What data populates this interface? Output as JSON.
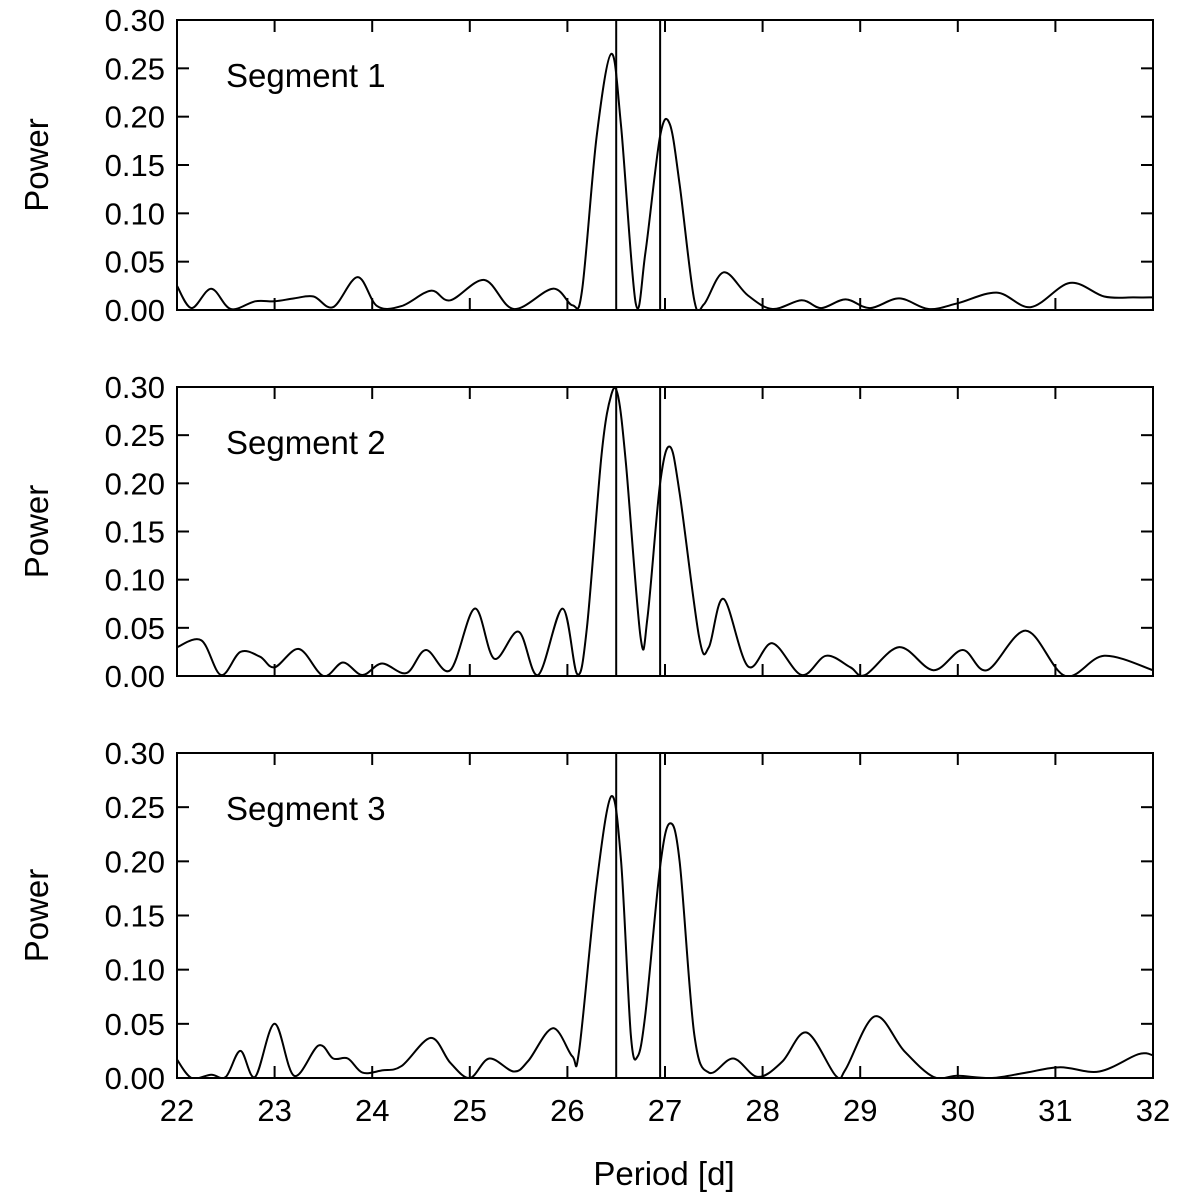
{
  "chart_data": {
    "type": "line",
    "xlabel": "Period [d]",
    "xlim": [
      22,
      32
    ],
    "x_ticks": [
      22,
      23,
      24,
      25,
      26,
      27,
      28,
      29,
      30,
      31,
      32
    ],
    "x_tick_labels": [
      "22",
      "23",
      "24",
      "25",
      "26",
      "27",
      "28",
      "29",
      "30",
      "31",
      "32"
    ],
    "ylim": [
      0,
      0.3
    ],
    "y_ticks": [
      0,
      0.05,
      0.1,
      0.15,
      0.2,
      0.25,
      0.3
    ],
    "y_tick_labels": [
      "0.00",
      "0.05",
      "0.10",
      "0.15",
      "0.20",
      "0.25",
      "0.30"
    ],
    "vertical_lines": [
      26.5,
      26.95
    ],
    "grid": false,
    "panels": [
      {
        "label": "Segment 1",
        "ylabel": "Power",
        "x": [
          22.0,
          22.15,
          22.35,
          22.55,
          22.8,
          23.0,
          23.2,
          23.4,
          23.6,
          23.85,
          24.05,
          24.3,
          24.6,
          24.8,
          25.15,
          25.45,
          25.85,
          26.05,
          26.15,
          26.3,
          26.45,
          26.55,
          26.7,
          26.8,
          26.95,
          27.05,
          27.15,
          27.3,
          27.4,
          27.6,
          27.85,
          28.1,
          28.4,
          28.6,
          28.85,
          29.1,
          29.4,
          29.7,
          30.0,
          30.4,
          30.75,
          31.15,
          31.5,
          31.8,
          32.0
        ],
        "y": [
          0.025,
          0.002,
          0.022,
          0.001,
          0.009,
          0.009,
          0.012,
          0.014,
          0.003,
          0.034,
          0.004,
          0.004,
          0.02,
          0.01,
          0.031,
          0.001,
          0.022,
          0.005,
          0.02,
          0.18,
          0.265,
          0.19,
          0.007,
          0.06,
          0.18,
          0.192,
          0.13,
          0.01,
          0.006,
          0.039,
          0.015,
          0.001,
          0.01,
          0.002,
          0.011,
          0.002,
          0.012,
          0.001,
          0.007,
          0.018,
          0.003,
          0.028,
          0.014,
          0.013,
          0.013
        ]
      },
      {
        "label": "Segment 2",
        "ylabel": "Power",
        "x": [
          22.0,
          22.25,
          22.45,
          22.65,
          22.85,
          23.0,
          23.25,
          23.5,
          23.7,
          23.9,
          24.1,
          24.35,
          24.55,
          24.8,
          25.05,
          25.25,
          25.5,
          25.7,
          25.95,
          26.1,
          26.2,
          26.35,
          26.45,
          26.52,
          26.6,
          26.75,
          26.82,
          26.95,
          27.05,
          27.15,
          27.35,
          27.45,
          27.6,
          27.85,
          28.1,
          28.4,
          28.65,
          28.9,
          29.05,
          29.4,
          29.75,
          30.05,
          30.3,
          30.7,
          31.1,
          31.5,
          32.0
        ],
        "y": [
          0.03,
          0.037,
          0.001,
          0.025,
          0.02,
          0.009,
          0.028,
          0.0,
          0.014,
          0.001,
          0.013,
          0.003,
          0.027,
          0.006,
          0.07,
          0.018,
          0.046,
          0.001,
          0.07,
          0.002,
          0.05,
          0.23,
          0.292,
          0.29,
          0.22,
          0.04,
          0.06,
          0.2,
          0.238,
          0.19,
          0.04,
          0.03,
          0.08,
          0.01,
          0.034,
          0.001,
          0.021,
          0.009,
          0.001,
          0.03,
          0.006,
          0.027,
          0.006,
          0.047,
          0.0,
          0.021,
          0.006
        ]
      },
      {
        "label": "Segment 3",
        "ylabel": "Power",
        "x": [
          22.0,
          22.15,
          22.35,
          22.5,
          22.65,
          22.8,
          23.0,
          23.2,
          23.45,
          23.6,
          23.75,
          23.9,
          24.1,
          24.3,
          24.6,
          24.8,
          25.0,
          25.2,
          25.45,
          25.6,
          25.85,
          26.05,
          26.12,
          26.3,
          26.45,
          26.55,
          26.65,
          26.72,
          26.8,
          26.95,
          27.05,
          27.15,
          27.3,
          27.45,
          27.7,
          27.95,
          28.2,
          28.45,
          28.75,
          28.85,
          29.15,
          29.45,
          29.75,
          30.0,
          30.35,
          30.7,
          31.05,
          31.45,
          31.85,
          32.0
        ],
        "y": [
          0.017,
          0.0,
          0.003,
          0.001,
          0.025,
          0.001,
          0.05,
          0.002,
          0.03,
          0.018,
          0.018,
          0.005,
          0.007,
          0.011,
          0.037,
          0.014,
          0.0,
          0.018,
          0.006,
          0.016,
          0.046,
          0.02,
          0.025,
          0.18,
          0.26,
          0.2,
          0.04,
          0.02,
          0.06,
          0.195,
          0.235,
          0.2,
          0.04,
          0.005,
          0.018,
          0.001,
          0.015,
          0.042,
          0.002,
          0.008,
          0.057,
          0.025,
          0.001,
          0.002,
          0.0,
          0.005,
          0.01,
          0.006,
          0.022,
          0.021
        ]
      }
    ]
  }
}
